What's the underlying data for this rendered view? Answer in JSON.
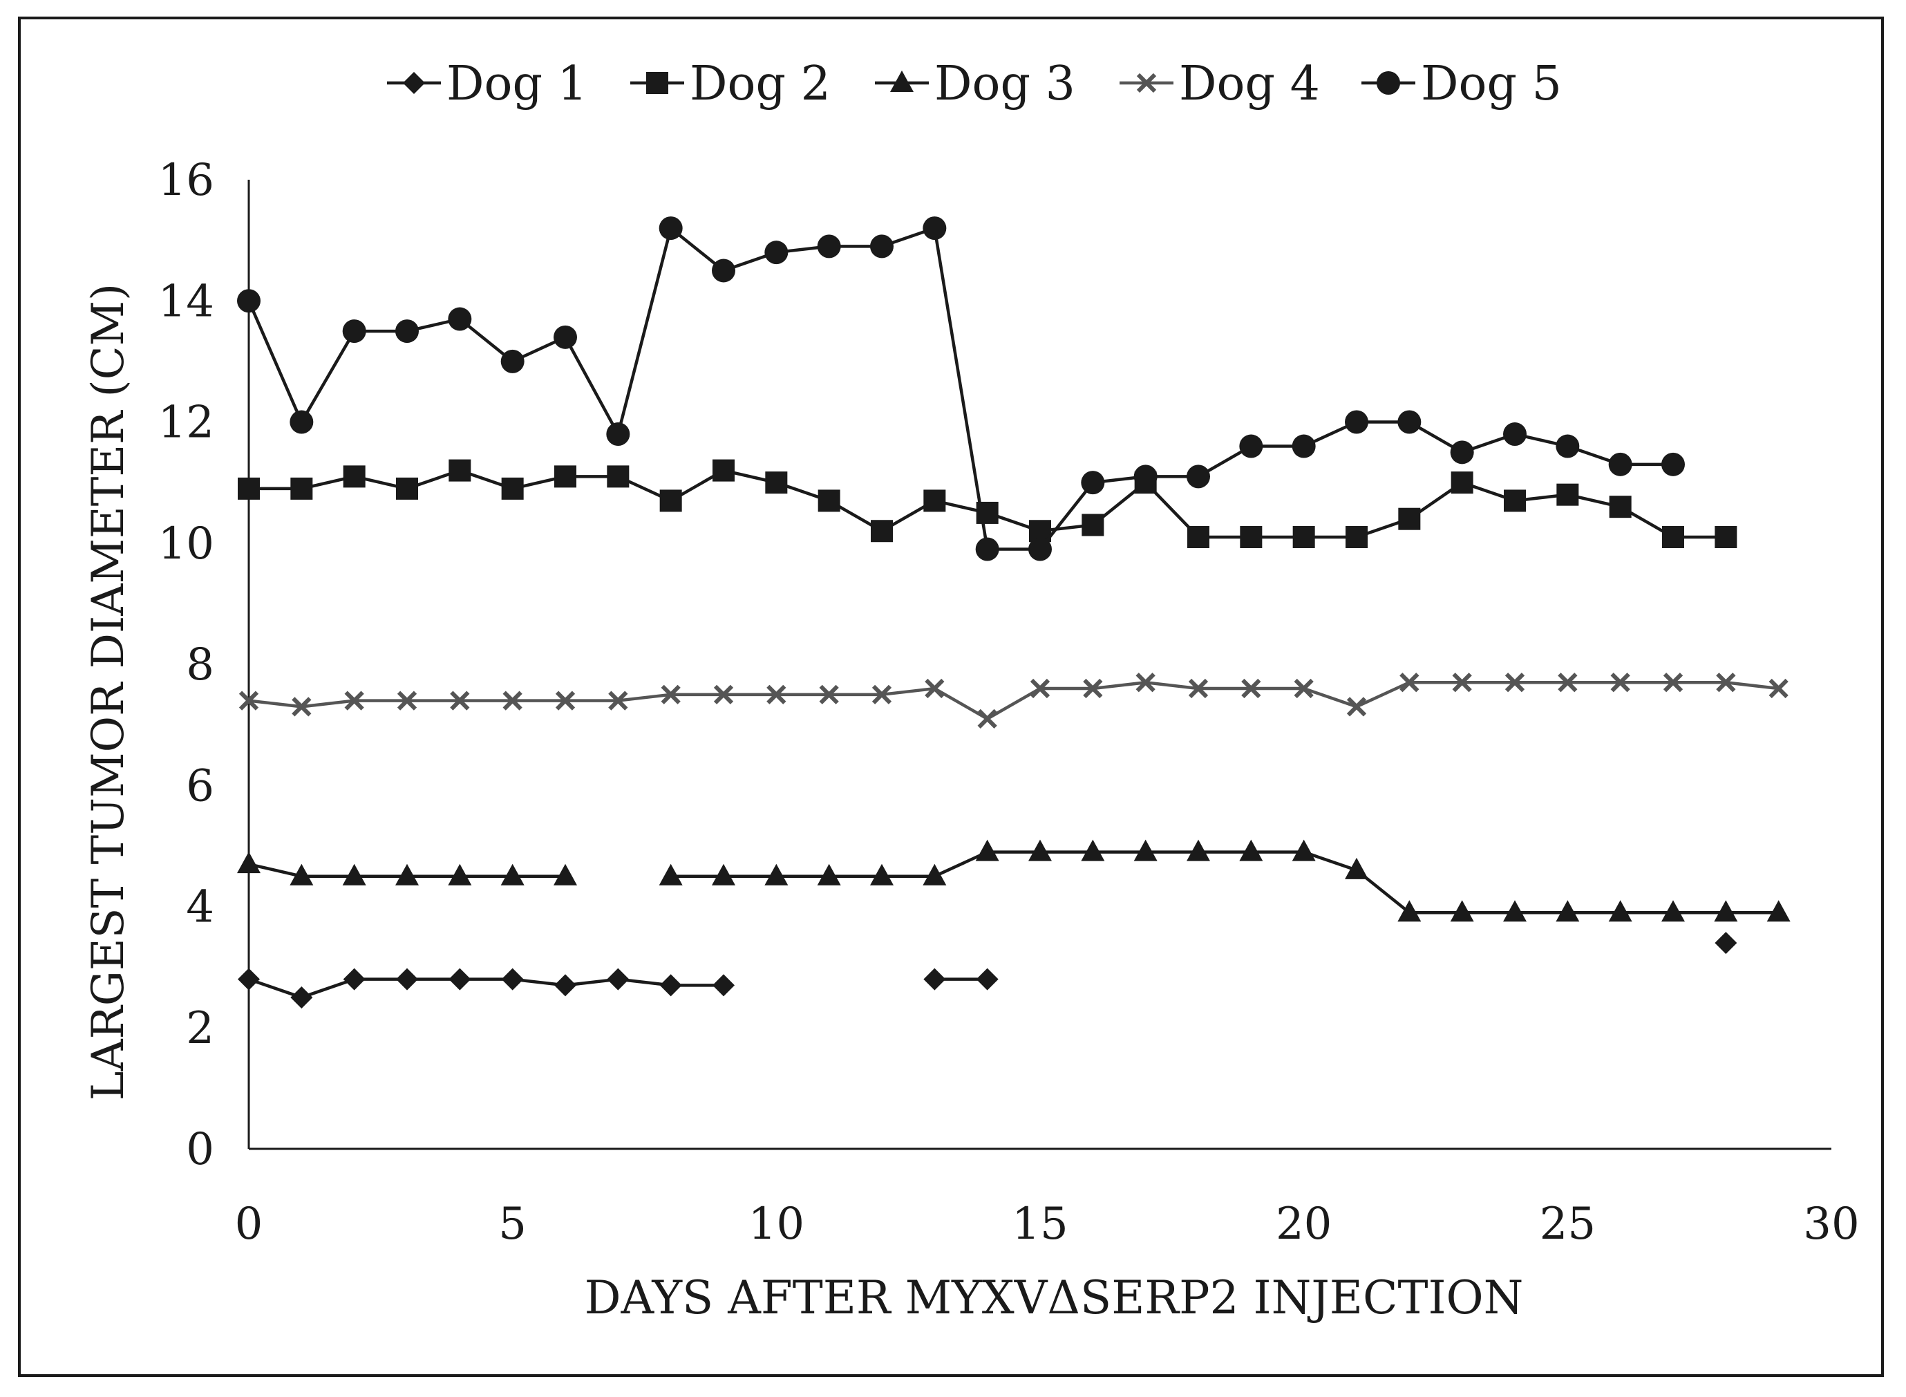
{
  "chart_data": {
    "type": "line",
    "title": "",
    "xlabel": "DAYS AFTER MYXVΔSERP2 INJECTION",
    "ylabel": "LARGEST TUMOR DIAMETER (CM)",
    "xlim": [
      0,
      30
    ],
    "ylim": [
      0,
      16
    ],
    "xticks": [
      0,
      5,
      10,
      15,
      20,
      25,
      30
    ],
    "yticks": [
      0,
      2,
      4,
      6,
      8,
      10,
      12,
      14,
      16
    ],
    "grid": false,
    "legend_position": "top",
    "series": [
      {
        "name": "Dog 1",
        "marker": "diamond",
        "color": "#1a1a1a",
        "segments": [
          [
            [
              0,
              2.8
            ],
            [
              1,
              2.5
            ],
            [
              2,
              2.8
            ],
            [
              3,
              2.8
            ],
            [
              4,
              2.8
            ],
            [
              5,
              2.8
            ],
            [
              6,
              2.7
            ],
            [
              7,
              2.8
            ],
            [
              8,
              2.7
            ],
            [
              9,
              2.7
            ]
          ],
          [
            [
              13,
              2.8
            ],
            [
              14,
              2.8
            ]
          ],
          [
            [
              28,
              3.4
            ]
          ]
        ]
      },
      {
        "name": "Dog 2",
        "marker": "square",
        "color": "#1a1a1a",
        "segments": [
          [
            [
              0,
              10.9
            ],
            [
              1,
              10.9
            ],
            [
              2,
              11.1
            ],
            [
              3,
              10.9
            ],
            [
              4,
              11.2
            ],
            [
              5,
              10.9
            ],
            [
              6,
              11.1
            ],
            [
              7,
              11.1
            ],
            [
              8,
              10.7
            ],
            [
              9,
              11.2
            ],
            [
              10,
              11.0
            ],
            [
              11,
              10.7
            ],
            [
              12,
              10.2
            ],
            [
              13,
              10.7
            ],
            [
              14,
              10.5
            ],
            [
              15,
              10.2
            ],
            [
              16,
              10.3
            ],
            [
              17,
              11.0
            ],
            [
              18,
              10.1
            ],
            [
              19,
              10.1
            ],
            [
              20,
              10.1
            ],
            [
              21,
              10.1
            ],
            [
              22,
              10.4
            ],
            [
              23,
              11.0
            ],
            [
              24,
              10.7
            ],
            [
              25,
              10.8
            ],
            [
              26,
              10.6
            ],
            [
              27,
              10.1
            ],
            [
              28,
              10.1
            ]
          ]
        ]
      },
      {
        "name": "Dog 3",
        "marker": "triangle",
        "color": "#1a1a1a",
        "segments": [
          [
            [
              0,
              4.7
            ],
            [
              1,
              4.5
            ],
            [
              2,
              4.5
            ],
            [
              3,
              4.5
            ],
            [
              4,
              4.5
            ],
            [
              5,
              4.5
            ],
            [
              6,
              4.5
            ]
          ],
          [
            [
              8,
              4.5
            ],
            [
              9,
              4.5
            ],
            [
              10,
              4.5
            ],
            [
              11,
              4.5
            ],
            [
              12,
              4.5
            ],
            [
              13,
              4.5
            ],
            [
              14,
              4.9
            ],
            [
              15,
              4.9
            ],
            [
              16,
              4.9
            ],
            [
              17,
              4.9
            ],
            [
              18,
              4.9
            ],
            [
              19,
              4.9
            ],
            [
              20,
              4.9
            ],
            [
              21,
              4.6
            ],
            [
              22,
              3.9
            ],
            [
              23,
              3.9
            ],
            [
              24,
              3.9
            ],
            [
              25,
              3.9
            ],
            [
              26,
              3.9
            ],
            [
              27,
              3.9
            ],
            [
              28,
              3.9
            ],
            [
              29,
              3.9
            ]
          ]
        ]
      },
      {
        "name": "Dog 4",
        "marker": "cross",
        "color": "#555555",
        "segments": [
          [
            [
              0,
              7.4
            ],
            [
              1,
              7.3
            ],
            [
              2,
              7.4
            ],
            [
              3,
              7.4
            ],
            [
              4,
              7.4
            ],
            [
              5,
              7.4
            ],
            [
              6,
              7.4
            ],
            [
              7,
              7.4
            ],
            [
              8,
              7.5
            ],
            [
              9,
              7.5
            ],
            [
              10,
              7.5
            ],
            [
              11,
              7.5
            ],
            [
              12,
              7.5
            ],
            [
              13,
              7.6
            ],
            [
              14,
              7.1
            ],
            [
              15,
              7.6
            ],
            [
              16,
              7.6
            ],
            [
              17,
              7.7
            ],
            [
              18,
              7.6
            ],
            [
              19,
              7.6
            ],
            [
              20,
              7.6
            ],
            [
              21,
              7.3
            ],
            [
              22,
              7.7
            ],
            [
              23,
              7.7
            ],
            [
              24,
              7.7
            ],
            [
              25,
              7.7
            ],
            [
              26,
              7.7
            ],
            [
              27,
              7.7
            ],
            [
              28,
              7.7
            ],
            [
              29,
              7.6
            ]
          ]
        ]
      },
      {
        "name": "Dog 5",
        "marker": "circle",
        "color": "#1a1a1a",
        "segments": [
          [
            [
              0,
              14.0
            ],
            [
              1,
              12.0
            ],
            [
              2,
              13.5
            ],
            [
              3,
              13.5
            ],
            [
              4,
              13.7
            ],
            [
              5,
              13.0
            ],
            [
              6,
              13.4
            ],
            [
              7,
              11.8
            ],
            [
              8,
              15.2
            ],
            [
              9,
              14.5
            ],
            [
              10,
              14.8
            ],
            [
              11,
              14.9
            ],
            [
              12,
              14.9
            ],
            [
              13,
              15.2
            ],
            [
              14,
              9.9
            ],
            [
              15,
              9.9
            ],
            [
              16,
              11.0
            ],
            [
              17,
              11.1
            ],
            [
              18,
              11.1
            ],
            [
              19,
              11.6
            ],
            [
              20,
              11.6
            ],
            [
              21,
              12.0
            ],
            [
              22,
              12.0
            ],
            [
              23,
              11.5
            ],
            [
              24,
              11.8
            ],
            [
              25,
              11.6
            ],
            [
              26,
              11.3
            ],
            [
              27,
              11.3
            ]
          ]
        ]
      }
    ]
  }
}
